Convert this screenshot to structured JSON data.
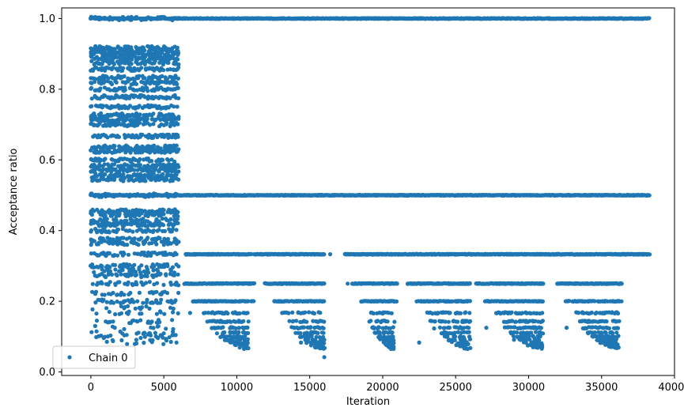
{
  "chart_data": {
    "type": "scatter",
    "xlabel": "Iteration",
    "ylabel": "Acceptance ratio",
    "xlim": [
      -2000,
      40000
    ],
    "ylim": [
      -0.01,
      1.03
    ],
    "xticks": [
      0,
      5000,
      10000,
      15000,
      20000,
      25000,
      30000,
      35000,
      40000
    ],
    "xtick_labels": [
      "0",
      "5000",
      "10000",
      "15000",
      "20000",
      "25000",
      "30000",
      "35000",
      "40000"
    ],
    "yticks": [
      0.0,
      0.2,
      0.4,
      0.6,
      0.8,
      1.0
    ],
    "ytick_labels": [
      "0.0",
      "0.2",
      "0.4",
      "0.6",
      "0.8",
      "1.0"
    ],
    "legend_position": "lower-left",
    "marker_color": "#1f77b4",
    "series": [
      {
        "name": "Chain 0",
        "x_range": [
          0,
          38300
        ],
        "phases": [
          {
            "x_range": [
              0,
              6000
            ],
            "levels": [
              0.083,
              0.091,
              0.1,
              0.111,
              0.125,
              0.143,
              0.167,
              0.182,
              0.2,
              0.222,
              0.25,
              0.273,
              0.286,
              0.3,
              0.333,
              0.364,
              0.375,
              0.4,
              0.417,
              0.429,
              0.444,
              0.455,
              0.5,
              0.545,
              0.556,
              0.571,
              0.583,
              0.6,
              0.625,
              0.636,
              0.667,
              0.7,
              0.714,
              0.727,
              0.75,
              0.778,
              0.8,
              0.818,
              0.833,
              0.857,
              0.875,
              0.889,
              0.9,
              0.909,
              0.917,
              1.0
            ]
          },
          {
            "x_range": [
              6000,
              38300
            ],
            "levels": [
              0.5,
              1.0
            ]
          },
          {
            "x_range": [
              6500,
              38300
            ],
            "levels": [
              0.333,
              0.25,
              0.2
            ]
          },
          {
            "x_range": [
              7500,
              36500
            ],
            "levels": [
              0.167,
              0.143,
              0.125,
              0.111,
              0.1,
              0.091,
              0.083,
              0.077,
              0.071,
              0.067
            ]
          }
        ]
      }
    ]
  }
}
